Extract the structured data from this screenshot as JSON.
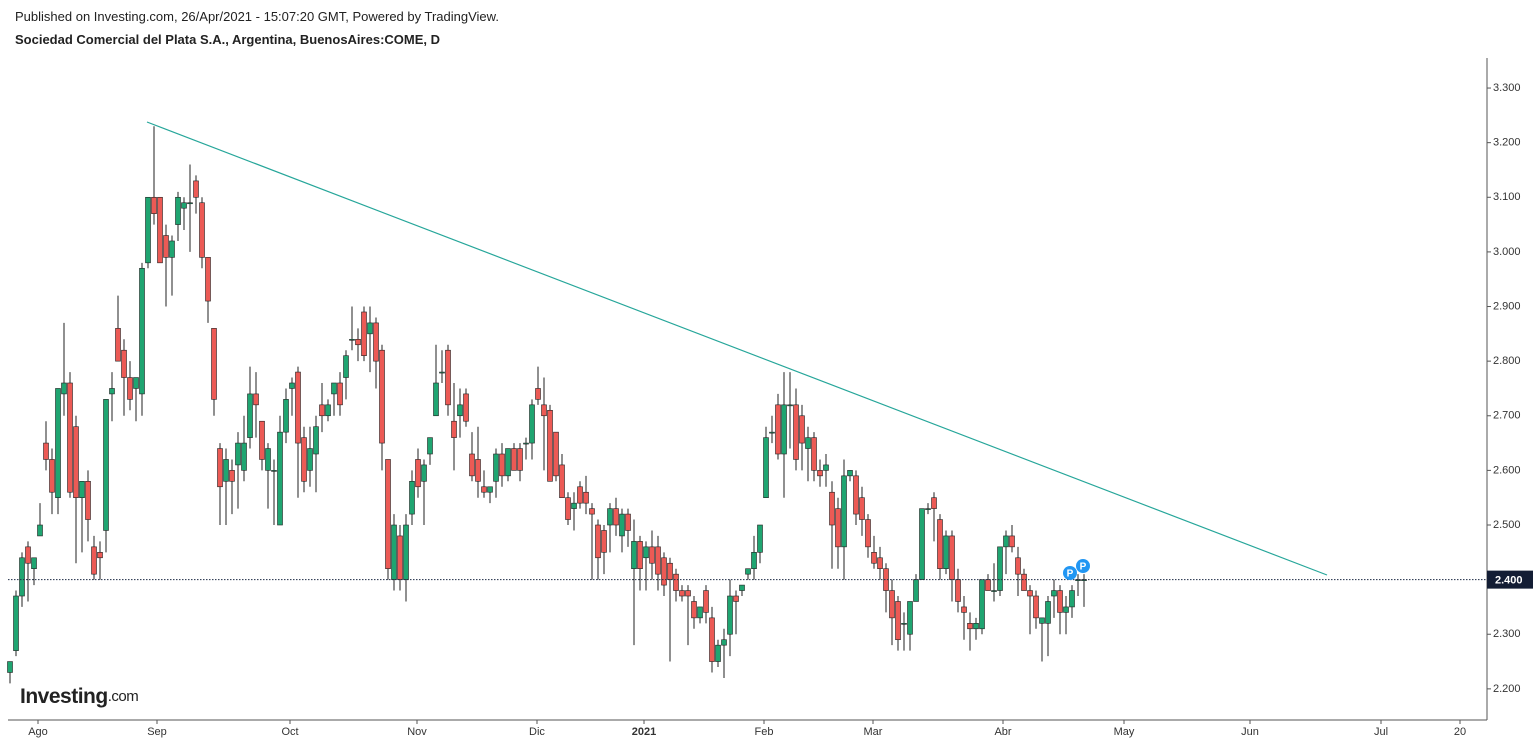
{
  "header": {
    "published": "Published on Investing.com, 26/Apr/2021 - 15:07:20 GMT, Powered by TradingView.",
    "instrument": "Sociedad Comercial del Plata S.A., Argentina, BuenosAires:COME, D"
  },
  "logo": {
    "brand": "Investing",
    "suffix": ".com"
  },
  "chart_data": {
    "type": "candlestick",
    "up_color": "#1fa571",
    "down_color": "#ec5a55",
    "trendline_color": "#26a69a",
    "ylim": [
      2.143,
      3.355
    ],
    "yticks": [
      {
        "value": 2.2,
        "label": "2.200"
      },
      {
        "value": 2.3,
        "label": "2.300"
      },
      {
        "value": 2.4,
        "label": "2.400"
      },
      {
        "value": 2.5,
        "label": "2.500"
      },
      {
        "value": 2.6,
        "label": "2.600"
      },
      {
        "value": 2.7,
        "label": "2.700"
      },
      {
        "value": 2.8,
        "label": "2.800"
      },
      {
        "value": 2.9,
        "label": "2.900"
      },
      {
        "value": 3.0,
        "label": "3.000"
      },
      {
        "value": 3.1,
        "label": "3.100"
      },
      {
        "value": 3.2,
        "label": "3.200"
      },
      {
        "value": 3.3,
        "label": "3.300"
      }
    ],
    "x_labels": [
      "Ago",
      "Sep",
      "Oct",
      "Nov",
      "Dic",
      "2021",
      "Feb",
      "Mar",
      "Abr",
      "May",
      "Jun",
      "Jul",
      "20"
    ],
    "last_price": {
      "value": 2.4,
      "label": "2.400"
    },
    "markers": [
      "P",
      "P"
    ],
    "open": [
      2.23,
      2.27,
      2.37,
      2.46,
      2.42,
      2.48,
      2.65,
      2.62,
      2.55,
      2.74,
      2.76,
      2.68,
      2.55,
      2.58,
      2.46,
      2.45,
      2.49,
      2.74,
      2.86,
      2.82,
      2.77,
      2.75,
      2.74,
      2.98,
      3.1,
      3.1,
      3.03,
      2.99,
      3.05,
      3.08,
      3.09,
      3.13,
      3.09,
      2.99,
      2.86,
      2.64,
      2.58,
      2.6,
      2.61,
      2.6,
      2.66,
      2.74,
      2.69,
      2.6,
      2.6,
      2.5,
      2.67,
      2.75,
      2.78,
      2.66,
      2.6,
      2.63,
      2.72,
      2.7,
      2.74,
      2.76,
      2.77,
      2.84,
      2.84,
      2.89,
      2.85,
      2.87,
      2.82,
      2.62,
      2.4,
      2.48,
      2.4,
      2.52,
      2.62,
      2.58,
      2.63,
      2.7,
      2.78,
      2.82,
      2.69,
      2.7,
      2.74,
      2.63,
      2.62,
      2.57,
      2.56,
      2.58,
      2.63,
      2.59,
      2.64,
      2.64,
      2.65,
      2.65,
      2.75,
      2.72,
      2.71,
      2.67,
      2.61,
      2.55,
      2.53,
      2.57,
      2.56,
      2.53,
      2.5,
      2.49,
      2.5,
      2.53,
      2.48,
      2.52,
      2.42,
      2.47,
      2.44,
      2.46,
      2.46,
      2.44,
      2.43,
      2.41,
      2.38,
      2.38,
      2.36,
      2.33,
      2.38,
      2.33,
      2.25,
      2.28,
      2.3,
      2.37,
      2.38,
      2.41,
      2.42,
      2.45,
      2.55,
      2.67,
      2.72,
      2.63,
      2.72,
      2.72,
      2.7,
      2.64,
      2.66,
      2.6,
      2.6,
      2.56,
      2.53,
      2.46,
      2.59,
      2.59,
      2.55,
      2.51,
      2.45,
      2.44,
      2.42,
      2.38,
      2.36,
      2.32,
      2.3,
      2.36,
      2.4,
      2.53,
      2.55,
      2.51,
      2.42,
      2.48,
      2.4,
      2.35,
      2.32,
      2.31,
      2.31,
      2.4,
      2.38,
      2.38,
      2.46,
      2.48,
      2.44,
      2.41,
      2.38,
      2.37,
      2.32,
      2.32,
      2.37,
      2.38,
      2.34,
      2.35,
      2.4,
      2.4
    ],
    "high": [
      2.25,
      2.38,
      2.45,
      2.47,
      2.44,
      2.54,
      2.69,
      2.64,
      2.75,
      2.87,
      2.78,
      2.7,
      2.58,
      2.6,
      2.48,
      2.47,
      2.73,
      2.78,
      2.92,
      2.84,
      2.8,
      2.77,
      2.98,
      3.1,
      3.23,
      3.1,
      3.05,
      3.03,
      3.11,
      3.1,
      3.16,
      3.14,
      3.1,
      2.99,
      2.86,
      2.65,
      2.64,
      2.62,
      2.67,
      2.7,
      2.79,
      2.78,
      2.69,
      2.65,
      2.62,
      2.7,
      2.75,
      2.77,
      2.79,
      2.68,
      2.68,
      2.7,
      2.76,
      2.73,
      2.76,
      2.78,
      2.82,
      2.9,
      2.86,
      2.9,
      2.9,
      2.88,
      2.83,
      2.62,
      2.52,
      2.5,
      2.52,
      2.6,
      2.64,
      2.62,
      2.66,
      2.83,
      2.82,
      2.83,
      2.76,
      2.75,
      2.75,
      2.67,
      2.68,
      2.6,
      2.57,
      2.64,
      2.65,
      2.64,
      2.65,
      2.65,
      2.66,
      2.73,
      2.79,
      2.77,
      2.72,
      2.67,
      2.63,
      2.56,
      2.56,
      2.58,
      2.59,
      2.54,
      2.51,
      2.5,
      2.54,
      2.55,
      2.53,
      2.53,
      2.51,
      2.48,
      2.47,
      2.49,
      2.48,
      2.45,
      2.44,
      2.42,
      2.39,
      2.39,
      2.37,
      2.35,
      2.39,
      2.35,
      2.29,
      2.31,
      2.4,
      2.38,
      2.39,
      2.42,
      2.48,
      2.5,
      2.68,
      2.7,
      2.74,
      2.78,
      2.78,
      2.75,
      2.72,
      2.68,
      2.67,
      2.62,
      2.63,
      2.58,
      2.55,
      2.62,
      2.6,
      2.6,
      2.57,
      2.52,
      2.48,
      2.46,
      2.43,
      2.4,
      2.37,
      2.34,
      2.36,
      2.41,
      2.53,
      2.54,
      2.56,
      2.52,
      2.49,
      2.49,
      2.42,
      2.37,
      2.34,
      2.33,
      2.4,
      2.41,
      2.43,
      2.46,
      2.49,
      2.5,
      2.46,
      2.42,
      2.39,
      2.38,
      2.33,
      2.37,
      2.4,
      2.39,
      2.37,
      2.39,
      2.41,
      2.41
    ],
    "low": [
      2.21,
      2.26,
      2.35,
      2.36,
      2.39,
      2.48,
      2.6,
      2.52,
      2.52,
      2.7,
      2.55,
      2.43,
      2.45,
      2.47,
      2.4,
      2.4,
      2.45,
      2.69,
      2.8,
      2.7,
      2.71,
      2.69,
      2.7,
      2.97,
      3.05,
      2.98,
      2.9,
      2.92,
      3.02,
      3.04,
      3.0,
      3.07,
      2.97,
      2.87,
      2.7,
      2.5,
      2.5,
      2.52,
      2.53,
      2.58,
      2.64,
      2.66,
      2.6,
      2.53,
      2.5,
      2.5,
      2.65,
      2.7,
      2.55,
      2.56,
      2.57,
      2.56,
      2.67,
      2.69,
      2.7,
      2.7,
      2.73,
      2.82,
      2.8,
      2.8,
      2.78,
      2.75,
      2.6,
      2.4,
      2.38,
      2.38,
      2.36,
      2.5,
      2.55,
      2.5,
      2.61,
      2.7,
      2.76,
      2.7,
      2.6,
      2.66,
      2.68,
      2.58,
      2.55,
      2.55,
      2.54,
      2.55,
      2.57,
      2.58,
      2.6,
      2.58,
      2.62,
      2.62,
      2.72,
      2.6,
      2.58,
      2.58,
      2.55,
      2.5,
      2.49,
      2.53,
      2.52,
      2.4,
      2.4,
      2.41,
      2.45,
      2.48,
      2.45,
      2.46,
      2.28,
      2.38,
      2.38,
      2.4,
      2.38,
      2.37,
      2.25,
      2.36,
      2.36,
      2.28,
      2.31,
      2.32,
      2.32,
      2.23,
      2.24,
      2.22,
      2.26,
      2.3,
      2.37,
      2.4,
      2.4,
      2.43,
      2.55,
      2.65,
      2.62,
      2.55,
      2.64,
      2.6,
      2.6,
      2.58,
      2.58,
      2.57,
      2.57,
      2.42,
      2.42,
      2.4,
      2.58,
      2.5,
      2.48,
      2.44,
      2.42,
      2.4,
      2.34,
      2.28,
      2.27,
      2.27,
      2.27,
      2.36,
      2.4,
      2.52,
      2.47,
      2.4,
      2.41,
      2.36,
      2.34,
      2.29,
      2.27,
      2.29,
      2.3,
      2.38,
      2.36,
      2.37,
      2.41,
      2.45,
      2.37,
      2.38,
      2.3,
      2.31,
      2.25,
      2.26,
      2.33,
      2.3,
      2.3,
      2.33,
      2.37,
      2.35
    ],
    "close": [
      2.25,
      2.37,
      2.44,
      2.43,
      2.44,
      2.5,
      2.62,
      2.56,
      2.75,
      2.76,
      2.56,
      2.55,
      2.58,
      2.51,
      2.41,
      2.44,
      2.73,
      2.75,
      2.8,
      2.77,
      2.73,
      2.77,
      2.97,
      3.1,
      3.07,
      2.98,
      2.99,
      3.02,
      3.1,
      3.09,
      3.09,
      3.1,
      2.99,
      2.91,
      2.73,
      2.57,
      2.62,
      2.58,
      2.65,
      2.65,
      2.74,
      2.72,
      2.62,
      2.64,
      2.6,
      2.67,
      2.73,
      2.76,
      2.65,
      2.58,
      2.64,
      2.68,
      2.7,
      2.72,
      2.76,
      2.72,
      2.81,
      2.84,
      2.83,
      2.81,
      2.87,
      2.8,
      2.65,
      2.42,
      2.5,
      2.4,
      2.5,
      2.58,
      2.57,
      2.61,
      2.66,
      2.76,
      2.78,
      2.72,
      2.66,
      2.72,
      2.69,
      2.59,
      2.58,
      2.56,
      2.57,
      2.63,
      2.59,
      2.64,
      2.6,
      2.6,
      2.65,
      2.72,
      2.73,
      2.7,
      2.58,
      2.59,
      2.55,
      2.51,
      2.54,
      2.54,
      2.54,
      2.52,
      2.44,
      2.45,
      2.53,
      2.5,
      2.52,
      2.49,
      2.47,
      2.42,
      2.46,
      2.43,
      2.41,
      2.39,
      2.4,
      2.38,
      2.37,
      2.37,
      2.33,
      2.35,
      2.34,
      2.25,
      2.28,
      2.29,
      2.37,
      2.36,
      2.39,
      2.42,
      2.45,
      2.5,
      2.66,
      2.67,
      2.63,
      2.72,
      2.72,
      2.62,
      2.65,
      2.66,
      2.6,
      2.59,
      2.61,
      2.5,
      2.46,
      2.59,
      2.6,
      2.52,
      2.51,
      2.46,
      2.43,
      2.42,
      2.38,
      2.33,
      2.29,
      2.32,
      2.36,
      2.4,
      2.53,
      2.53,
      2.53,
      2.42,
      2.48,
      2.4,
      2.36,
      2.34,
      2.31,
      2.32,
      2.4,
      2.38,
      2.38,
      2.46,
      2.48,
      2.46,
      2.41,
      2.38,
      2.37,
      2.33,
      2.33,
      2.36,
      2.38,
      2.34,
      2.35,
      2.38,
      2.4,
      2.4
    ]
  }
}
